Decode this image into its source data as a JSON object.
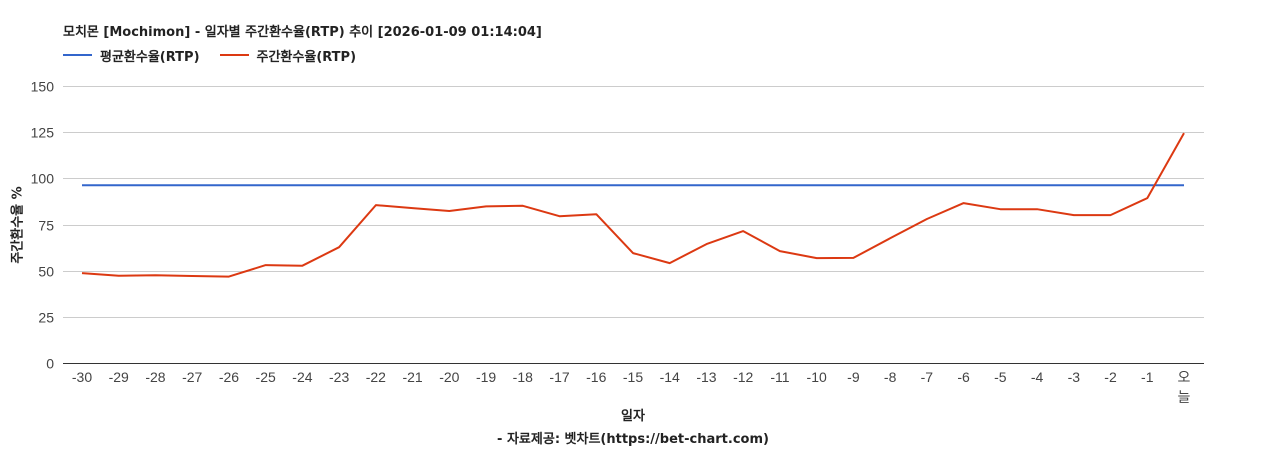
{
  "title": "모치몬 [Mochimon] - 일자별 주간환수율(RTP) 추이 [2026-01-09 01:14:04]",
  "legend": [
    {
      "label": "평균환수율(RTP)",
      "color": "#3366cc"
    },
    {
      "label": "주간환수율(RTP)",
      "color": "#dc3912"
    }
  ],
  "axes": {
    "ylabel": "주간환수율 %",
    "xlabel": "일자",
    "source": "- 자료제공: 벳차트(https://bet-chart.com)"
  },
  "chart_data": {
    "type": "line",
    "title": "모치몬 [Mochimon] - 일자별 주간환수율(RTP) 추이 [2026-01-09 01:14:04]",
    "xlabel": "일자",
    "ylabel": "주간환수율 %",
    "ylim": [
      0,
      150
    ],
    "yticks": [
      0,
      25,
      50,
      75,
      100,
      125,
      150
    ],
    "grid": true,
    "legend_position": "top",
    "categories": [
      "-30",
      "-29",
      "-28",
      "-27",
      "-26",
      "-25",
      "-24",
      "-23",
      "-22",
      "-21",
      "-20",
      "-19",
      "-18",
      "-17",
      "-16",
      "-15",
      "-14",
      "-13",
      "-12",
      "-11",
      "-10",
      "-9",
      "-8",
      "-7",
      "-6",
      "-5",
      "-4",
      "-3",
      "-2",
      "-1",
      "오늘"
    ],
    "series": [
      {
        "name": "평균환수율(RTP)",
        "color": "#3366cc",
        "values": [
          96.3,
          96.3,
          96.3,
          96.3,
          96.3,
          96.3,
          96.3,
          96.3,
          96.3,
          96.3,
          96.3,
          96.3,
          96.3,
          96.3,
          96.3,
          96.3,
          96.3,
          96.3,
          96.3,
          96.3,
          96.3,
          96.3,
          96.3,
          96.3,
          96.3,
          96.3,
          96.3,
          96.3,
          96.3,
          96.3,
          96.3
        ]
      },
      {
        "name": "주간환수율(RTP)",
        "color": "#dc3912",
        "values": [
          48.7,
          47.3,
          47.5,
          47.1,
          46.8,
          53.0,
          52.7,
          62.7,
          85.5,
          83.9,
          82.3,
          84.8,
          85.1,
          79.5,
          80.6,
          59.5,
          54.1,
          64.4,
          71.4,
          60.6,
          56.8,
          56.9,
          67.5,
          78.0,
          86.6,
          83.3,
          83.3,
          80.1,
          80.1,
          89.3,
          124.5
        ]
      }
    ]
  }
}
